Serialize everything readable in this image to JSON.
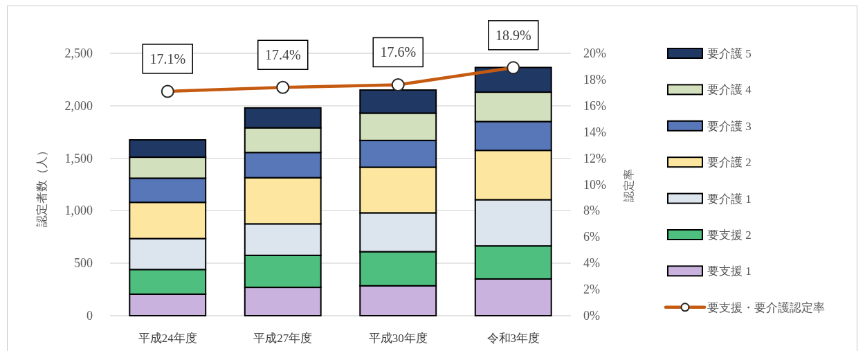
{
  "chart_data": {
    "type": "bar",
    "stacked": true,
    "categories": [
      "平成24年度",
      "平成27年度",
      "平成30年度",
      "令和3年度"
    ],
    "ylabel": "認定者数（人）",
    "y2label": "認定率",
    "ylim": [
      0,
      2500
    ],
    "yticks": [
      0,
      500,
      {
        "value": 1000,
        "label": "1,000"
      },
      {
        "value": 1500,
        "label": "1,500"
      },
      {
        "value": 2000,
        "label": "2,000"
      },
      {
        "value": 2500,
        "label": "2,500"
      }
    ],
    "y2lim": [
      0,
      20
    ],
    "y2ticks": [
      {
        "value": 0,
        "label": "0%"
      },
      {
        "value": 2,
        "label": "2%"
      },
      {
        "value": 4,
        "label": "4%"
      },
      {
        "value": 6,
        "label": "6%"
      },
      {
        "value": 8,
        "label": "8%"
      },
      {
        "value": 10,
        "label": "10%"
      },
      {
        "value": 12,
        "label": "12%"
      },
      {
        "value": 14,
        "label": "14%"
      },
      {
        "value": 16,
        "label": "16%"
      },
      {
        "value": 18,
        "label": "18%"
      },
      {
        "value": 20,
        "label": "20%"
      }
    ],
    "grid": "y",
    "legend": "right",
    "marker": "circle",
    "series": [
      {
        "name": "要支援 1",
        "color": "#c9b3de",
        "values": [
          205,
          270,
          285,
          350
        ]
      },
      {
        "name": "要支援 2",
        "color": "#4fbf7f",
        "values": [
          235,
          305,
          325,
          315
        ]
      },
      {
        "name": "要介護 1",
        "color": "#dce4ee",
        "values": [
          295,
          300,
          370,
          440
        ]
      },
      {
        "name": "要介護 2",
        "color": "#fde7a0",
        "values": [
          345,
          440,
          435,
          470
        ]
      },
      {
        "name": "要介護 3",
        "color": "#5877b8",
        "values": [
          230,
          240,
          255,
          275
        ]
      },
      {
        "name": "要介護 4",
        "color": "#d3e0bd",
        "values": [
          200,
          235,
          260,
          280
        ]
      },
      {
        "name": "要介護 5",
        "color": "#203864",
        "values": [
          165,
          190,
          220,
          235
        ]
      },
      {
        "name": "要支援・要介護認定率",
        "type": "line",
        "axis": "y2",
        "color": "#c55a11",
        "line_style": "solid",
        "values": [
          17.1,
          17.4,
          17.6,
          18.9
        ],
        "value_labels": [
          "17.1%",
          "17.4%",
          "17.6%",
          "18.9%"
        ]
      }
    ]
  }
}
